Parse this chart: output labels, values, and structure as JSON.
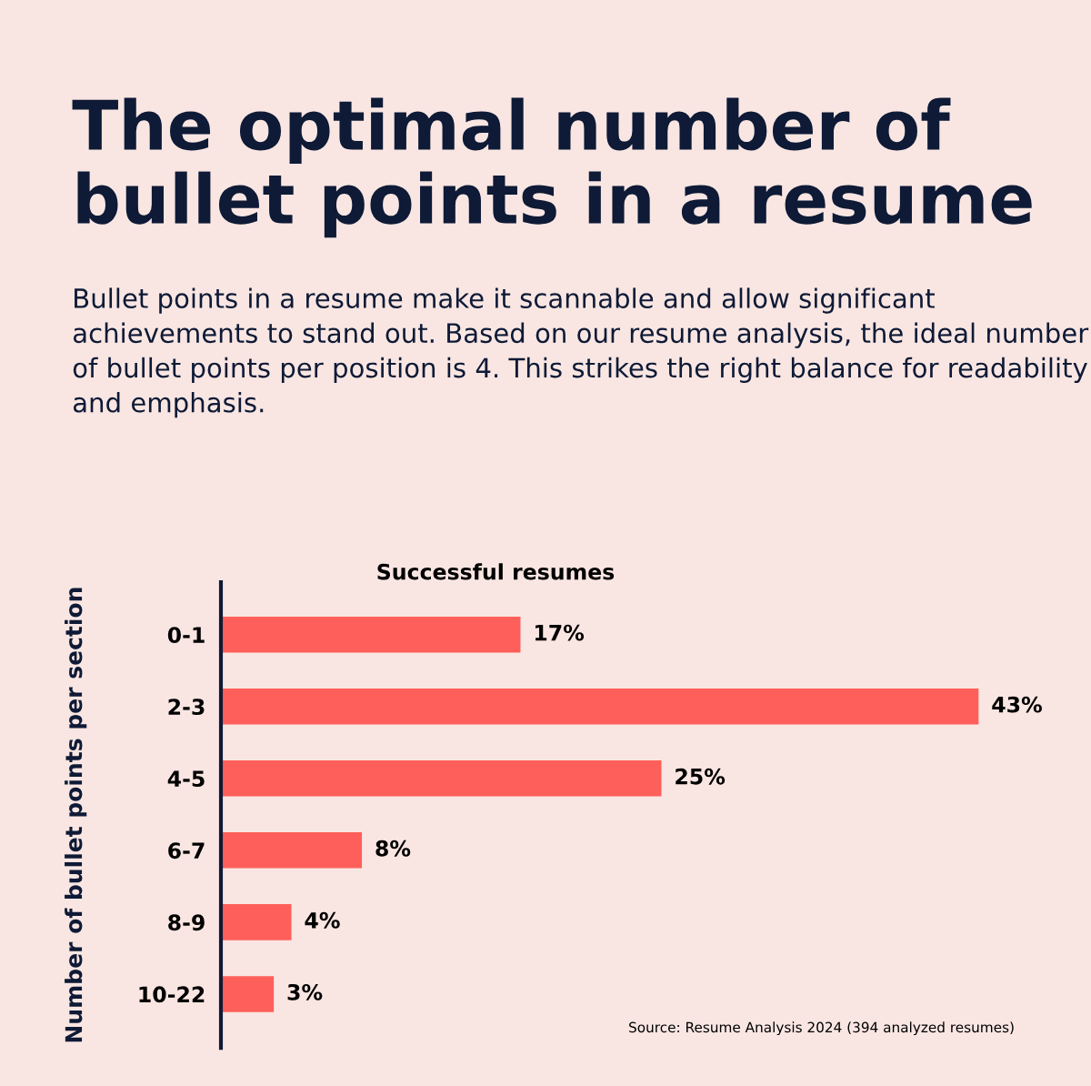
{
  "chart_data": {
    "type": "bar",
    "orientation": "horizontal",
    "title": "The optimal number of\nbullet points in a resume",
    "subtitle": "Bullet points in a resume make it scannable and allow significant achievements to stand out. Based on our resume analysis, the ideal number of bullet points per position is 4. This strikes the right balance for readability and emphasis.",
    "xlabel": "Successful resumes",
    "ylabel": "Number of bullet points per section",
    "categories": [
      "0-1",
      "2-3",
      "4-5",
      "6-7",
      "8-9",
      "10-22"
    ],
    "values": [
      17,
      43,
      25,
      8,
      4,
      3
    ],
    "value_labels": [
      "17%",
      "43%",
      "25%",
      "8%",
      "4%",
      "3%"
    ],
    "color": "#ff5f5a",
    "grid": false,
    "legend": false,
    "annotations": [
      "Source: Resume Analysis 2024 (394 analyzed resumes)"
    ]
  }
}
